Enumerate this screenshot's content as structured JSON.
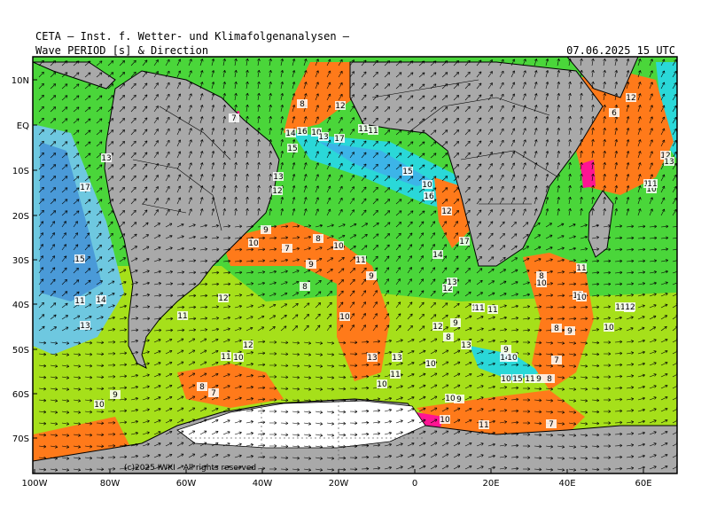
{
  "header": {
    "line1": "CETA — Inst. f. Wetter- und Klimafolgenanalysen —",
    "line2": "Wave_PERIOD [s] & Direction",
    "timestamp": "07.06.2025 15 UTC"
  },
  "axes": {
    "lat_labels": [
      "10N",
      "EQ",
      "10S",
      "20S",
      "30S",
      "40S",
      "50S",
      "60S",
      "70S"
    ],
    "lon_labels": [
      "100W",
      "80W",
      "60W",
      "40W",
      "20W",
      "0",
      "20E",
      "40E",
      "60E"
    ]
  },
  "copyright": "(c)2025 IWKI - All rights reserved",
  "colors": {
    "ocean_low": "#ff7a1a",
    "ocean_mid_low": "#a6e01a",
    "ocean_mid": "#4ad63a",
    "ocean_high": "#2ad8d8",
    "ocean_very_high": "#4a9ad8",
    "land": "#a9a9a9",
    "ice": "#ffffff",
    "extreme_low": "#ff1493"
  },
  "period_labels": [
    {
      "v": "7"
    },
    {
      "v": "8"
    },
    {
      "v": "12"
    },
    {
      "v": "14"
    },
    {
      "v": "16"
    },
    {
      "v": "10"
    },
    {
      "v": "13"
    },
    {
      "v": "17"
    },
    {
      "v": "11"
    },
    {
      "v": "11"
    },
    {
      "v": "15"
    },
    {
      "v": "13"
    },
    {
      "v": "15"
    },
    {
      "v": "10"
    },
    {
      "v": "16"
    },
    {
      "v": "12"
    },
    {
      "v": "17"
    },
    {
      "v": "13"
    },
    {
      "v": "12"
    },
    {
      "v": "10"
    },
    {
      "v": "9"
    },
    {
      "v": "8"
    },
    {
      "v": "10"
    },
    {
      "v": "7"
    },
    {
      "v": "9"
    },
    {
      "v": "11"
    },
    {
      "v": "14"
    },
    {
      "v": "17"
    },
    {
      "v": "12"
    },
    {
      "v": "13"
    },
    {
      "v": "9"
    },
    {
      "v": "8"
    },
    {
      "v": "13"
    },
    {
      "v": "11"
    },
    {
      "v": "10"
    },
    {
      "v": "14"
    },
    {
      "v": "15"
    },
    {
      "v": "12"
    },
    {
      "v": "11"
    },
    {
      "v": "10"
    },
    {
      "v": "11"
    },
    {
      "v": "12"
    },
    {
      "v": "10"
    },
    {
      "v": "13"
    },
    {
      "v": "13"
    },
    {
      "v": "11"
    },
    {
      "v": "10"
    },
    {
      "v": "8"
    },
    {
      "v": "9"
    },
    {
      "v": "10"
    },
    {
      "v": "11"
    },
    {
      "v": "11"
    },
    {
      "v": "12"
    },
    {
      "v": "13"
    },
    {
      "v": "12"
    },
    {
      "v": "11"
    },
    {
      "v": "10"
    },
    {
      "v": "9"
    },
    {
      "v": "8"
    },
    {
      "v": "10"
    },
    {
      "v": "9"
    },
    {
      "v": "14"
    },
    {
      "v": "10"
    },
    {
      "v": "9"
    },
    {
      "v": "15"
    },
    {
      "v": "11"
    },
    {
      "v": "8"
    },
    {
      "v": "7"
    },
    {
      "v": "10"
    },
    {
      "v": "9"
    },
    {
      "v": "8"
    },
    {
      "v": "7"
    },
    {
      "v": "9"
    },
    {
      "v": "10"
    },
    {
      "v": "11"
    },
    {
      "v": "10"
    },
    {
      "v": "8"
    },
    {
      "v": "7"
    },
    {
      "v": "10"
    },
    {
      "v": "6"
    },
    {
      "v": "12"
    },
    {
      "v": "10"
    },
    {
      "v": "10"
    },
    {
      "v": "13"
    },
    {
      "v": "11"
    },
    {
      "v": "10"
    },
    {
      "v": "10"
    },
    {
      "v": "12"
    },
    {
      "v": "11"
    },
    {
      "v": "12"
    }
  ]
}
